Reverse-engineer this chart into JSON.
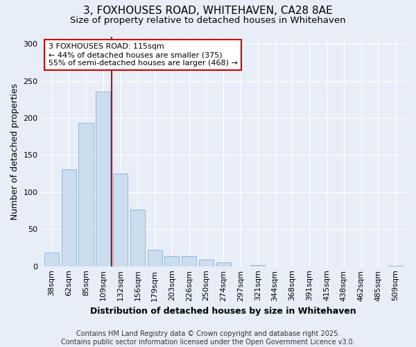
{
  "title1": "3, FOXHOUSES ROAD, WHITEHAVEN, CA28 8AE",
  "title2": "Size of property relative to detached houses in Whitehaven",
  "xlabel": "Distribution of detached houses by size in Whitehaven",
  "ylabel": "Number of detached properties",
  "categories": [
    "38sqm",
    "62sqm",
    "85sqm",
    "109sqm",
    "132sqm",
    "156sqm",
    "179sqm",
    "203sqm",
    "226sqm",
    "250sqm",
    "274sqm",
    "297sqm",
    "321sqm",
    "344sqm",
    "368sqm",
    "391sqm",
    "415sqm",
    "438sqm",
    "462sqm",
    "485sqm",
    "509sqm"
  ],
  "values": [
    18,
    131,
    193,
    236,
    125,
    76,
    22,
    14,
    14,
    9,
    5,
    0,
    2,
    0,
    0,
    0,
    0,
    0,
    0,
    0,
    1
  ],
  "bar_color": "#ccddf0",
  "bar_edgecolor": "#93b8d8",
  "vline_x_index": 3.5,
  "vline_color": "#cc0000",
  "annotation_line1": "3 FOXHOUSES ROAD: 115sqm",
  "annotation_line2": "← 44% of detached houses are smaller (375)",
  "annotation_line3": "55% of semi-detached houses are larger (468) →",
  "annotation_box_color": "#ffffff",
  "annotation_box_edgecolor": "#cc0000",
  "ylim": [
    0,
    310
  ],
  "yticks": [
    0,
    50,
    100,
    150,
    200,
    250,
    300
  ],
  "bg_color": "#e8eef7",
  "footer": "Contains HM Land Registry data © Crown copyright and database right 2025.\nContains public sector information licensed under the Open Government Licence v3.0.",
  "title_fontsize": 11,
  "subtitle_fontsize": 9.5,
  "axis_label_fontsize": 9,
  "tick_fontsize": 8,
  "annotation_fontsize": 8,
  "footer_fontsize": 7
}
